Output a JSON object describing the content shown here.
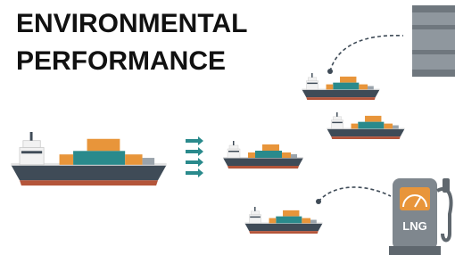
{
  "header": {
    "title_lines": [
      "ENVIRONMENTAL",
      "PERFORMANCE"
    ]
  },
  "pump": {
    "label": "LNG"
  }
}
